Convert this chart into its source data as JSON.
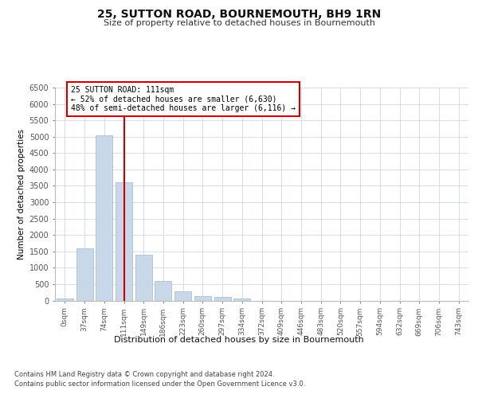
{
  "title": "25, SUTTON ROAD, BOURNEMOUTH, BH9 1RN",
  "subtitle": "Size of property relative to detached houses in Bournemouth",
  "xlabel": "Distribution of detached houses by size in Bournemouth",
  "ylabel": "Number of detached properties",
  "footnote1": "Contains HM Land Registry data © Crown copyright and database right 2024.",
  "footnote2": "Contains public sector information licensed under the Open Government Licence v3.0.",
  "annotation_title": "25 SUTTON ROAD: 111sqm",
  "annotation_line1": "← 52% of detached houses are smaller (6,630)",
  "annotation_line2": "48% of semi-detached houses are larger (6,116) →",
  "bar_color": "#c8d8e8",
  "bar_edge_color": "#a0b8cc",
  "vline_color": "#cc0000",
  "categories": [
    "0sqm",
    "37sqm",
    "74sqm",
    "111sqm",
    "149sqm",
    "186sqm",
    "223sqm",
    "260sqm",
    "297sqm",
    "334sqm",
    "372sqm",
    "409sqm",
    "446sqm",
    "483sqm",
    "520sqm",
    "557sqm",
    "594sqm",
    "632sqm",
    "669sqm",
    "706sqm",
    "743sqm"
  ],
  "values": [
    50,
    1600,
    5050,
    3600,
    1400,
    600,
    270,
    130,
    100,
    60,
    0,
    0,
    0,
    0,
    0,
    0,
    0,
    0,
    0,
    0,
    0
  ],
  "ylim": [
    0,
    6500
  ],
  "yticks": [
    0,
    500,
    1000,
    1500,
    2000,
    2500,
    3000,
    3500,
    4000,
    4500,
    5000,
    5500,
    6000,
    6500
  ],
  "grid_color": "#d0d8e8",
  "background_color": "#ffffff"
}
